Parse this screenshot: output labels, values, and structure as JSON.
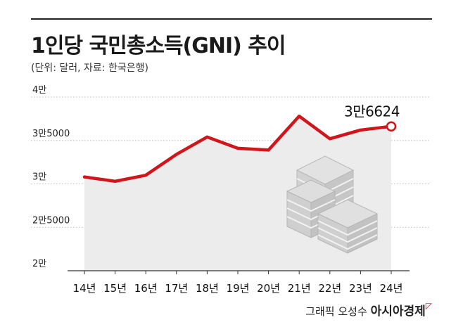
{
  "header": {
    "title": "1인당 국민총소득(GNI) 추이",
    "subtitle": "(단위: 달러, 자료: 한국은행)"
  },
  "footer": {
    "credit": "그래픽 오성수",
    "brand": "아시아경제"
  },
  "colors": {
    "line": "#d0151b",
    "area": "#ececec",
    "grid": "#bdbdbd"
  },
  "icon": "stacked-money-icon",
  "chart_data": {
    "type": "line",
    "categories": [
      "14년",
      "15년",
      "16년",
      "17년",
      "18년",
      "19년",
      "20년",
      "21년",
      "22년",
      "23년",
      "24년"
    ],
    "values": [
      30800,
      30300,
      31000,
      33400,
      35400,
      34100,
      33900,
      37800,
      35200,
      36200,
      36624
    ],
    "ylim": [
      20000,
      40000
    ],
    "yticks": [
      20000,
      25000,
      30000,
      35000,
      40000
    ],
    "ytick_labels": [
      "2만",
      "2만5000",
      "3만",
      "3만5000",
      "4만"
    ],
    "grid": true,
    "area_fill": true,
    "data_labels": [
      {
        "index": 10,
        "text": "3만6624"
      }
    ]
  }
}
